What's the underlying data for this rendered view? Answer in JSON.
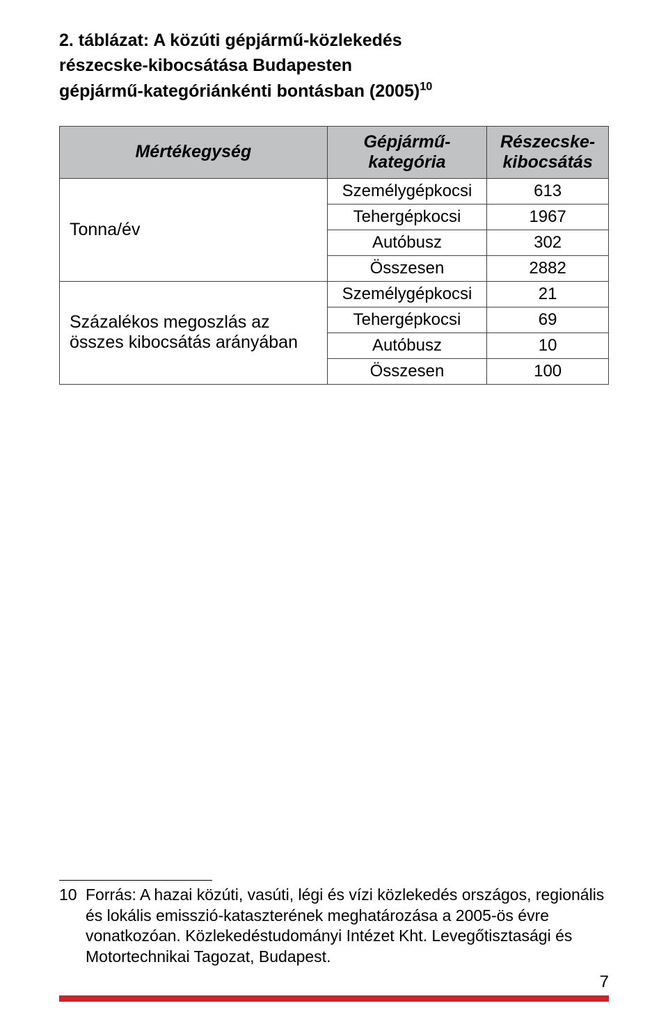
{
  "title": {
    "line1": "2. táblázat: A közúti gépjármű-közlekedés",
    "line2": "részecske-kibocsátása Budapesten",
    "line3_pre": "gépjármű-kategóriánkénti bontásban (2005)",
    "line3_sup": "10"
  },
  "table": {
    "headers": {
      "unit": "Mértékegység",
      "category_line1": "Gépjármű-",
      "category_line2": "kategória",
      "emission_line1": "Részecske-",
      "emission_line2": "kibocsátás"
    },
    "group1_label": "Tonna/év",
    "group2_label_line1": "Százalékos megoszlás az",
    "group2_label_line2": "összes kibocsátás arányában",
    "rows_g1": [
      {
        "cat": "Személygépkocsi",
        "val": "613"
      },
      {
        "cat": "Tehergépkocsi",
        "val": "1967"
      },
      {
        "cat": "Autóbusz",
        "val": "302"
      },
      {
        "cat": "Összesen",
        "val": "2882"
      }
    ],
    "rows_g2": [
      {
        "cat": "Személygépkocsi",
        "val": "21"
      },
      {
        "cat": "Tehergépkocsi",
        "val": "69"
      },
      {
        "cat": "Autóbusz",
        "val": "10"
      },
      {
        "cat": "Összesen",
        "val": "100"
      }
    ],
    "style": {
      "header_bg": "#c1c2c4",
      "border_color": "#444444",
      "font_size": 24
    }
  },
  "footnote": {
    "num": "10",
    "text": "Forrás: A hazai közúti, vasúti, légi és vízi közlekedés országos, regionális és lokális emisszió-kataszterének meghatározása a 2005-ös évre vonatkozóan. Közlekedéstudományi Intézet Kht. Levegőtisztasági és Motortechnikai Tagozat, Budapest."
  },
  "page_number": "7",
  "colors": {
    "accent": "#d12228",
    "text": "#000000",
    "background": "#ffffff"
  }
}
